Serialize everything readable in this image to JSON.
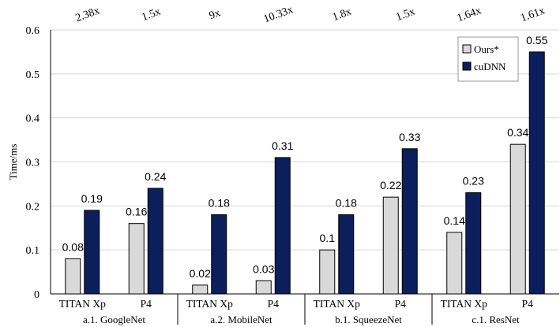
{
  "chart_data": {
    "type": "bar",
    "ylabel": "Time/ms",
    "ylim": [
      0,
      0.6
    ],
    "yticks": [
      "0",
      "0.1",
      "0.2",
      "0.3",
      "0.4",
      "0.5",
      "0.6"
    ],
    "legend_position": "top-right",
    "groups": [
      {
        "label": "a.1. GoogleNet",
        "categories": [
          "TITAN Xp",
          "P4"
        ],
        "speedups": [
          "2.38x",
          "1.5x"
        ]
      },
      {
        "label": "a.2. MobileNet",
        "categories": [
          "TITAN Xp",
          "P4"
        ],
        "speedups": [
          "9x",
          "10.33x"
        ]
      },
      {
        "label": "b.1. SqueezeNet",
        "categories": [
          "TITAN Xp",
          "P4"
        ],
        "speedups": [
          "1.8x",
          "1.5x"
        ]
      },
      {
        "label": "c.1. ResNet",
        "categories": [
          "TITAN Xp",
          "P4"
        ],
        "speedups": [
          "1.64x",
          "1.61x"
        ]
      }
    ],
    "series": [
      {
        "name": "Ours*",
        "color": "#d9d9d9",
        "values": [
          0.08,
          0.16,
          0.02,
          0.03,
          0.1,
          0.22,
          0.14,
          0.34
        ],
        "labels": [
          "0.08",
          "0.16",
          "0.02",
          "0.03",
          "0.1",
          "0.22",
          "0.14",
          "0.34"
        ]
      },
      {
        "name": "cuDNN",
        "color": "#0a1f5c",
        "values": [
          0.19,
          0.24,
          0.18,
          0.31,
          0.18,
          0.33,
          0.23,
          0.55
        ],
        "labels": [
          "0.19",
          "0.24",
          "0.18",
          "0.31",
          "0.18",
          "0.33",
          "0.23",
          "0.55"
        ]
      }
    ]
  }
}
